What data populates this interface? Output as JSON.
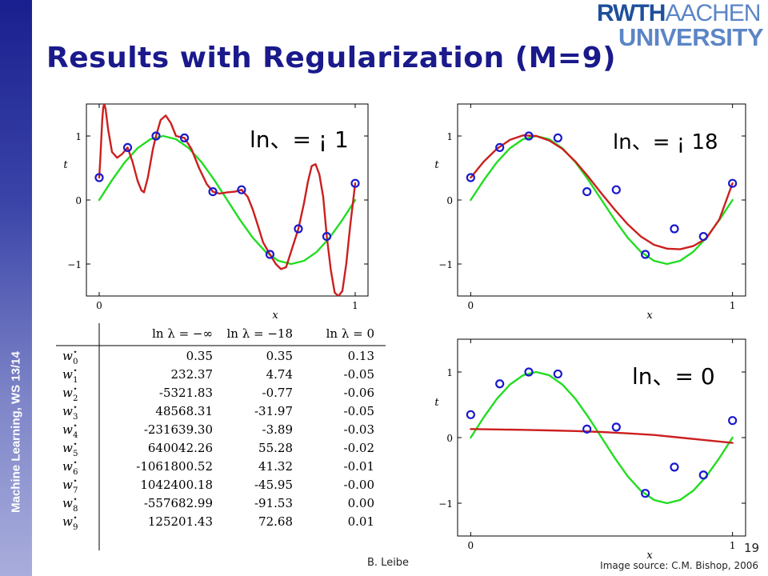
{
  "sidebar": {
    "label": "Machine Learning, WS 13/14"
  },
  "title": "Results with Regularization (M=9)",
  "logo": {
    "part1": "RWTH",
    "part2": "AACHEN",
    "line2": "UNIVERSITY"
  },
  "footer": {
    "author": "B. Leibe",
    "page": "19",
    "source": "Image source: C.M. Bishop, 2006"
  },
  "colors": {
    "data_points": "#1a1acc",
    "true_curve": "#22dd22",
    "fit_curve": "#cc1f1f",
    "title": "#1a1a8c"
  },
  "chart_data": [
    {
      "type": "scatter",
      "annotation": "ln、= ¡ 1",
      "xlabel": "x",
      "ylabel": "t",
      "xlim": [
        -0.05,
        1.05
      ],
      "ylim": [
        -1.5,
        1.5
      ],
      "xticks": [
        0,
        1
      ],
      "yticks": [
        -1,
        0,
        1
      ],
      "points": {
        "x": [
          0,
          0.111,
          0.222,
          0.333,
          0.444,
          0.556,
          0.667,
          0.778,
          0.889,
          1.0
        ],
        "y": [
          0.35,
          0.82,
          1.0,
          0.97,
          0.13,
          0.16,
          -0.85,
          -0.45,
          -0.57,
          0.26
        ]
      },
      "series": [
        {
          "role": "true",
          "x": [
            0,
            0.05,
            0.1,
            0.15,
            0.2,
            0.25,
            0.3,
            0.35,
            0.4,
            0.45,
            0.5,
            0.55,
            0.6,
            0.65,
            0.7,
            0.75,
            0.8,
            0.85,
            0.9,
            0.95,
            1.0
          ],
          "y": [
            0,
            0.31,
            0.59,
            0.81,
            0.95,
            1.0,
            0.95,
            0.81,
            0.59,
            0.31,
            0,
            -0.31,
            -0.59,
            -0.81,
            -0.95,
            -1.0,
            -0.95,
            -0.81,
            -0.59,
            -0.31,
            0
          ]
        },
        {
          "role": "fit",
          "x": [
            0.0,
            0.004,
            0.008,
            0.012,
            0.016,
            0.02,
            0.025,
            0.035,
            0.05,
            0.07,
            0.09,
            0.111,
            0.13,
            0.15,
            0.165,
            0.175,
            0.19,
            0.21,
            0.222,
            0.24,
            0.26,
            0.28,
            0.3,
            0.333,
            0.36,
            0.39,
            0.42,
            0.444,
            0.47,
            0.5,
            0.53,
            0.556,
            0.58,
            0.6,
            0.62,
            0.64,
            0.667,
            0.69,
            0.71,
            0.73,
            0.75,
            0.778,
            0.8,
            0.815,
            0.83,
            0.845,
            0.86,
            0.875,
            0.889,
            0.905,
            0.92,
            0.935,
            0.95,
            0.965,
            0.98,
            1.0
          ],
          "y": [
            0.35,
            0.62,
            0.95,
            1.25,
            1.45,
            1.5,
            1.42,
            1.1,
            0.75,
            0.66,
            0.72,
            0.82,
            0.6,
            0.3,
            0.15,
            0.12,
            0.35,
            0.8,
            1.0,
            1.25,
            1.32,
            1.2,
            1.0,
            0.97,
            0.8,
            0.5,
            0.25,
            0.13,
            0.1,
            0.12,
            0.13,
            0.16,
            0.05,
            -0.15,
            -0.4,
            -0.66,
            -0.85,
            -1.0,
            -1.08,
            -1.05,
            -0.8,
            -0.45,
            -0.05,
            0.28,
            0.53,
            0.56,
            0.4,
            0.05,
            -0.57,
            -1.1,
            -1.45,
            -1.5,
            -1.42,
            -1.0,
            -0.42,
            0.26
          ]
        }
      ]
    },
    {
      "type": "scatter",
      "annotation": "ln、= ¡ 18",
      "xlabel": "x",
      "ylabel": "t",
      "xlim": [
        -0.05,
        1.05
      ],
      "ylim": [
        -1.5,
        1.5
      ],
      "xticks": [
        0,
        1
      ],
      "yticks": [
        -1,
        0,
        1
      ],
      "points": {
        "x": [
          0,
          0.111,
          0.222,
          0.333,
          0.444,
          0.556,
          0.667,
          0.778,
          0.889,
          1.0
        ],
        "y": [
          0.35,
          0.82,
          1.0,
          0.97,
          0.13,
          0.16,
          -0.85,
          -0.45,
          -0.57,
          0.26
        ]
      },
      "series": [
        {
          "role": "true",
          "x": [
            0,
            0.05,
            0.1,
            0.15,
            0.2,
            0.25,
            0.3,
            0.35,
            0.4,
            0.45,
            0.5,
            0.55,
            0.6,
            0.65,
            0.7,
            0.75,
            0.8,
            0.85,
            0.9,
            0.95,
            1.0
          ],
          "y": [
            0,
            0.31,
            0.59,
            0.81,
            0.95,
            1.0,
            0.95,
            0.81,
            0.59,
            0.31,
            0,
            -0.31,
            -0.59,
            -0.81,
            -0.95,
            -1.0,
            -0.95,
            -0.81,
            -0.59,
            -0.31,
            0
          ]
        },
        {
          "role": "fit",
          "x": [
            0,
            0.05,
            0.1,
            0.15,
            0.2,
            0.25,
            0.3,
            0.35,
            0.4,
            0.45,
            0.5,
            0.55,
            0.6,
            0.65,
            0.7,
            0.75,
            0.8,
            0.85,
            0.9,
            0.95,
            1.0
          ],
          "y": [
            0.35,
            0.6,
            0.8,
            0.94,
            1.01,
            1.0,
            0.93,
            0.8,
            0.6,
            0.36,
            0.1,
            -0.15,
            -0.38,
            -0.57,
            -0.7,
            -0.76,
            -0.77,
            -0.72,
            -0.6,
            -0.3,
            0.26
          ]
        }
      ]
    },
    {
      "type": "scatter",
      "annotation": "ln、= 0",
      "xlabel": "x",
      "ylabel": "t",
      "xlim": [
        -0.05,
        1.05
      ],
      "ylim": [
        -1.5,
        1.5
      ],
      "xticks": [
        0,
        1
      ],
      "yticks": [
        -1,
        0,
        1
      ],
      "points": {
        "x": [
          0,
          0.111,
          0.222,
          0.333,
          0.444,
          0.556,
          0.667,
          0.778,
          0.889,
          1.0
        ],
        "y": [
          0.35,
          0.82,
          1.0,
          0.97,
          0.13,
          0.16,
          -0.85,
          -0.45,
          -0.57,
          0.26
        ]
      },
      "series": [
        {
          "role": "true",
          "x": [
            0,
            0.05,
            0.1,
            0.15,
            0.2,
            0.25,
            0.3,
            0.35,
            0.4,
            0.45,
            0.5,
            0.55,
            0.6,
            0.65,
            0.7,
            0.75,
            0.8,
            0.85,
            0.9,
            0.95,
            1.0
          ],
          "y": [
            0,
            0.31,
            0.59,
            0.81,
            0.95,
            1.0,
            0.95,
            0.81,
            0.59,
            0.31,
            0,
            -0.31,
            -0.59,
            -0.81,
            -0.95,
            -1.0,
            -0.95,
            -0.81,
            -0.59,
            -0.31,
            0
          ]
        },
        {
          "role": "fit",
          "x": [
            0,
            0.1,
            0.2,
            0.3,
            0.4,
            0.5,
            0.6,
            0.7,
            0.8,
            0.9,
            1.0
          ],
          "y": [
            0.13,
            0.125,
            0.118,
            0.11,
            0.1,
            0.085,
            0.065,
            0.04,
            0.0,
            -0.04,
            -0.08
          ]
        }
      ]
    }
  ],
  "table": {
    "headers": [
      "",
      "ln λ = −∞",
      "ln λ = −18",
      "ln λ = 0"
    ],
    "rows": [
      {
        "label": "w0",
        "vals": [
          "0.35",
          "0.35",
          "0.13"
        ]
      },
      {
        "label": "w1",
        "vals": [
          "232.37",
          "4.74",
          "-0.05"
        ]
      },
      {
        "label": "w2",
        "vals": [
          "-5321.83",
          "-0.77",
          "-0.06"
        ]
      },
      {
        "label": "w3",
        "vals": [
          "48568.31",
          "-31.97",
          "-0.05"
        ]
      },
      {
        "label": "w4",
        "vals": [
          "-231639.30",
          "-3.89",
          "-0.03"
        ]
      },
      {
        "label": "w5",
        "vals": [
          "640042.26",
          "55.28",
          "-0.02"
        ]
      },
      {
        "label": "w6",
        "vals": [
          "-1061800.52",
          "41.32",
          "-0.01"
        ]
      },
      {
        "label": "w7",
        "vals": [
          "1042400.18",
          "-45.95",
          "-0.00"
        ]
      },
      {
        "label": "w8",
        "vals": [
          "-557682.99",
          "-91.53",
          "0.00"
        ]
      },
      {
        "label": "w9",
        "vals": [
          "125201.43",
          "72.68",
          "0.01"
        ]
      }
    ]
  }
}
